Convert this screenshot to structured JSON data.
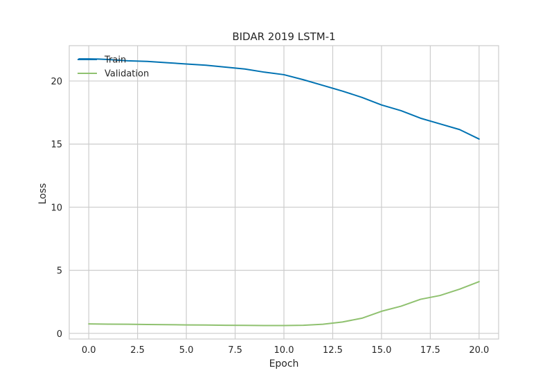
{
  "chart_data": {
    "type": "line",
    "title": "BIDAR 2019 LSTM-1",
    "xlabel": "Epoch",
    "ylabel": "Loss",
    "xlim": [
      -1.0,
      21.0
    ],
    "ylim": [
      -0.45,
      22.8
    ],
    "xticks": [
      0.0,
      2.5,
      5.0,
      7.5,
      10.0,
      12.5,
      15.0,
      17.5,
      20.0
    ],
    "xtick_labels": [
      "0.0",
      "2.5",
      "5.0",
      "7.5",
      "10.0",
      "12.5",
      "15.0",
      "17.5",
      "20.0"
    ],
    "yticks": [
      0,
      5,
      10,
      15,
      20
    ],
    "ytick_labels": [
      "0",
      "5",
      "10",
      "15",
      "20"
    ],
    "grid": true,
    "legend_position": "top-left",
    "series": [
      {
        "name": "Train",
        "color": "#0072b2",
        "x": [
          -0.5,
          0,
          0.5,
          1,
          2,
          3,
          4,
          5,
          6,
          7,
          8,
          9,
          10,
          11,
          12,
          13,
          14,
          15,
          16,
          17,
          18,
          19,
          20
        ],
        "y": [
          21.75,
          21.75,
          21.74,
          21.7,
          21.6,
          21.55,
          21.45,
          21.35,
          21.25,
          21.1,
          20.95,
          20.7,
          20.5,
          20.1,
          19.65,
          19.2,
          18.7,
          18.1,
          17.65,
          17.05,
          16.6,
          16.15,
          15.4
        ]
      },
      {
        "name": "Validation",
        "color": "#8fc16f",
        "x": [
          0,
          1,
          2,
          3,
          4,
          5,
          6,
          7,
          8,
          9,
          10,
          11,
          12,
          13,
          14,
          15,
          16,
          17,
          18,
          19,
          20
        ],
        "y": [
          0.75,
          0.73,
          0.72,
          0.7,
          0.69,
          0.67,
          0.66,
          0.64,
          0.63,
          0.62,
          0.62,
          0.64,
          0.72,
          0.9,
          1.2,
          1.75,
          2.15,
          2.7,
          3.0,
          3.5,
          4.1
        ]
      }
    ]
  }
}
